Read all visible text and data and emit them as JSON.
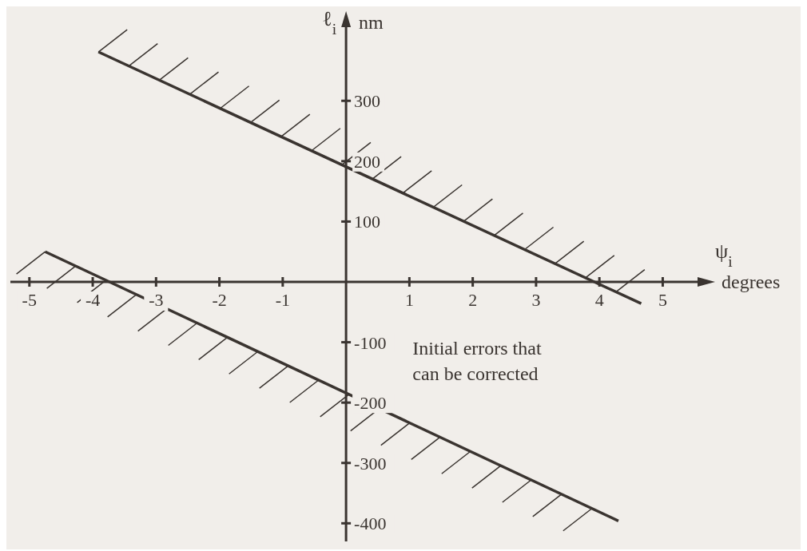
{
  "chart_data": {
    "type": "line",
    "xlabel": "ψ$_{i}$",
    "ylabel": "ℓ$_{i}$",
    "annotations": [
      "nm",
      "degrees",
      "Initial errors that\ncan be corrected"
    ],
    "series": [
      {
        "color": "#3a3430",
        "x": [
          -3.91,
          4.66
        ],
        "values": [
          381,
          -36
        ]
      },
      {
        "color": "#3a3430",
        "x": [
          -4.75,
          4.3
        ],
        "values": [
          50,
          -396
        ]
      }
    ],
    "xlim": [
      -5.3,
      5.6
    ],
    "ylim": [
      -430,
      430
    ],
    "xticks": [
      -5,
      -4,
      -3,
      -2,
      -1,
      1,
      2,
      3,
      4,
      5
    ],
    "yticks": [
      -400,
      -300,
      -200,
      -100,
      100,
      200,
      300
    ],
    "marker": "none",
    "line_style": "solid"
  }
}
